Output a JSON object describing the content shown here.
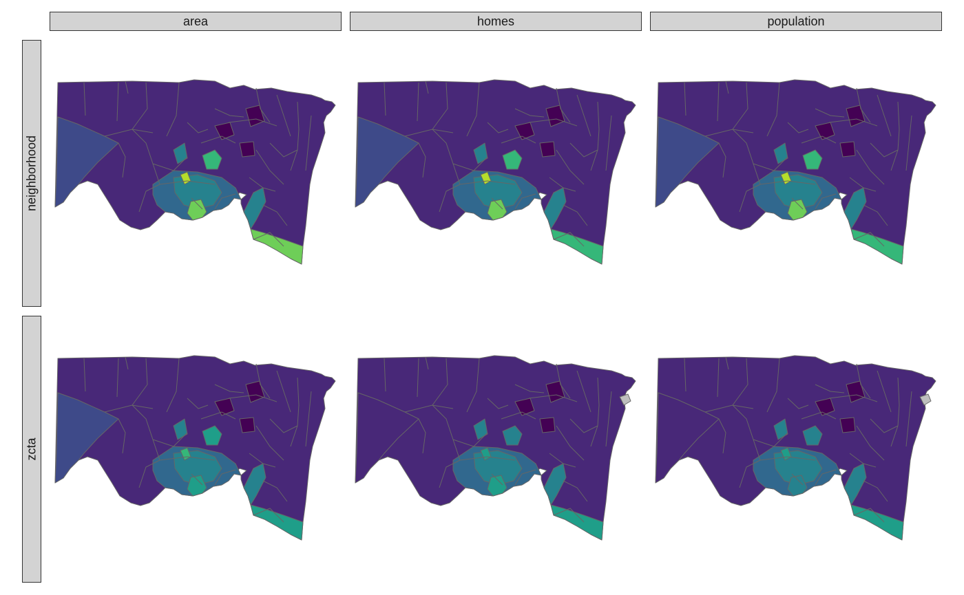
{
  "facets": {
    "columns": [
      "area",
      "homes",
      "population"
    ],
    "rows": [
      "neighborhood",
      "zcta"
    ]
  },
  "colors": {
    "strip_fill": "#d3d3d3",
    "border": "#666666",
    "missing": "#bebebe",
    "viridis": [
      "#440154",
      "#482878",
      "#3e4a89",
      "#31688e",
      "#26828e",
      "#1f9e89",
      "#35b779",
      "#6ece58",
      "#b5de2b",
      "#fde725"
    ]
  },
  "panels": [
    {
      "row": "neighborhood",
      "col": "area",
      "base": 1,
      "west": 2,
      "core": [
        3,
        4
      ],
      "hot": [
        6,
        7,
        8
      ],
      "south": 7,
      "dark": 0
    },
    {
      "row": "neighborhood",
      "col": "homes",
      "base": 1,
      "west": 2,
      "core": [
        3,
        4
      ],
      "hot": [
        6,
        7,
        8
      ],
      "south": 6,
      "dark": 0
    },
    {
      "row": "neighborhood",
      "col": "population",
      "base": 1,
      "west": 2,
      "core": [
        3,
        4
      ],
      "hot": [
        6,
        7,
        8
      ],
      "south": 6,
      "dark": 0
    },
    {
      "row": "zcta",
      "col": "area",
      "base": 1,
      "west": 2,
      "core": [
        3,
        4
      ],
      "hot": [
        5,
        5,
        6
      ],
      "south": 5,
      "dark": 0
    },
    {
      "row": "zcta",
      "col": "homes",
      "base": 1,
      "west": 1,
      "core": [
        3,
        4
      ],
      "hot": [
        4,
        5,
        5
      ],
      "south": 5,
      "dark": 0,
      "missing": true
    },
    {
      "row": "zcta",
      "col": "population",
      "base": 1,
      "west": 1,
      "core": [
        3,
        4
      ],
      "hot": [
        4,
        4,
        5
      ],
      "south": 5,
      "dark": 0,
      "missing": true
    }
  ]
}
